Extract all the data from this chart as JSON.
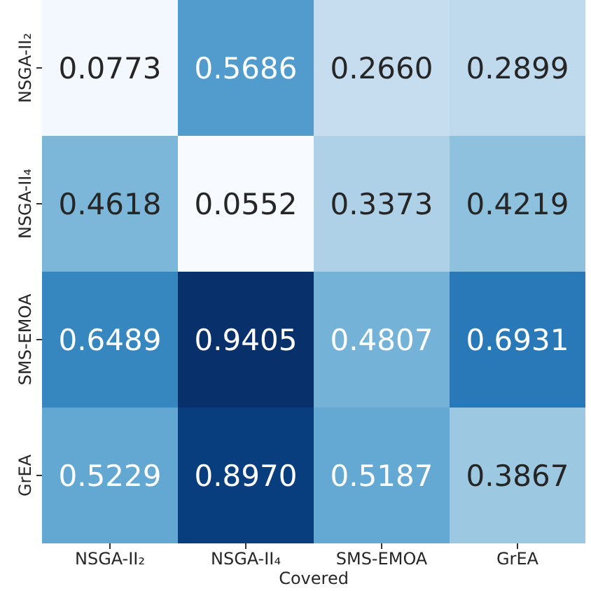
{
  "chart_data": {
    "type": "heatmap",
    "xlabel": "Covered",
    "categories": [
      "NSGA-II₂",
      "NSGA-II₄",
      "SMS-EMOA",
      "GrEA"
    ],
    "y_categories": [
      "NSGA-II₂",
      "NSGA-II₄",
      "SMS-EMOA",
      "GrEA"
    ],
    "cells": [
      [
        0.0773,
        0.5686,
        0.266,
        0.2899
      ],
      [
        0.4618,
        0.0552,
        0.3373,
        0.4219
      ],
      [
        0.6489,
        0.9405,
        0.4807,
        0.6931
      ],
      [
        0.5229,
        0.897,
        0.5187,
        0.3867
      ]
    ],
    "cell_labels": [
      [
        "0.0773",
        "0.5686",
        "0.2660",
        "0.2899"
      ],
      [
        "0.4618",
        "0.0552",
        "0.3373",
        "0.4219"
      ],
      [
        "0.6489",
        "0.9405",
        "0.4807",
        "0.6931"
      ],
      [
        "0.5229",
        "0.8970",
        "0.5187",
        "0.3867"
      ]
    ]
  }
}
